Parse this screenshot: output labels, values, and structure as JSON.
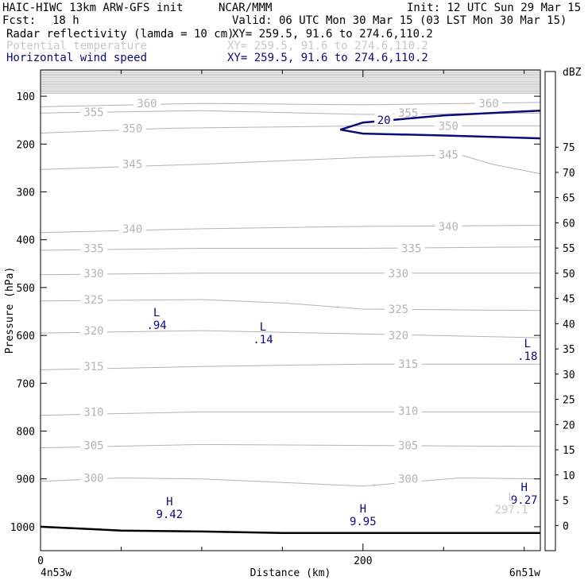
{
  "header": {
    "model": "HAIC-HIWC 13km ARW-GFS init",
    "org": "NCAR/MMM",
    "init": "Init: 12 UTC Sun 29 Mar 15",
    "fcst_label": "Fcst:",
    "fcst_value": "18 h",
    "valid": "Valid: 06 UTC Mon 30 Mar 15 (03 LST Mon 30 Mar 15)"
  },
  "fields": [
    {
      "name": "Radar reflectivity (lamda = 10 cm)",
      "xy": "XY= 259.5, 91.6 to 274.6,110.2",
      "color": "#000000"
    },
    {
      "name": "Potential temperature",
      "xy": "XY= 259.5, 91.6 to 274.6,110.2",
      "color": "#c8c8c8"
    },
    {
      "name": "Horizontal wind speed",
      "xy": "XY= 259.5, 91.6 to 274.6,110.2",
      "color": "#0a0a7a"
    }
  ],
  "chart_data": {
    "type": "cross-section contour",
    "xlabel": "Distance (km)",
    "ylabel": "Pressure (hPa)",
    "xlim": [
      0,
      310
    ],
    "ylim": [
      45,
      1050
    ],
    "x_ticks": [
      0,
      200
    ],
    "x_minor_ticks": [
      50,
      100,
      150,
      250,
      300
    ],
    "y_ticks": [
      100,
      200,
      300,
      400,
      500,
      600,
      700,
      800,
      900,
      1000
    ],
    "left_endpoint": "4n53w",
    "right_endpoint": "6n51w",
    "theta_contours": [
      {
        "value": 300,
        "points": [
          [
            0,
            905
          ],
          [
            50,
            898
          ],
          [
            100,
            900
          ],
          [
            200,
            915
          ],
          [
            260,
            898
          ],
          [
            310,
            900
          ]
        ],
        "labels": [
          {
            "x": 33,
            "p": 898
          },
          {
            "x": 228,
            "p": 900
          }
        ]
      },
      {
        "value": 305,
        "points": [
          [
            0,
            835
          ],
          [
            100,
            828
          ],
          [
            200,
            830
          ],
          [
            310,
            832
          ]
        ],
        "labels": [
          {
            "x": 33,
            "p": 830
          },
          {
            "x": 228,
            "p": 830
          }
        ]
      },
      {
        "value": 310,
        "points": [
          [
            0,
            767
          ],
          [
            100,
            760
          ],
          [
            200,
            760
          ],
          [
            310,
            760
          ]
        ],
        "labels": [
          {
            "x": 33,
            "p": 760
          },
          {
            "x": 228,
            "p": 758
          }
        ]
      },
      {
        "value": 315,
        "points": [
          [
            0,
            672
          ],
          [
            100,
            665
          ],
          [
            200,
            660
          ],
          [
            310,
            660
          ]
        ],
        "labels": [
          {
            "x": 33,
            "p": 665
          },
          {
            "x": 228,
            "p": 660
          }
        ]
      },
      {
        "value": 320,
        "points": [
          [
            0,
            595
          ],
          [
            100,
            590
          ],
          [
            200,
            597
          ],
          [
            310,
            605
          ]
        ],
        "labels": [
          {
            "x": 33,
            "p": 590
          },
          {
            "x": 222,
            "p": 600
          }
        ]
      },
      {
        "value": 325,
        "points": [
          [
            0,
            528
          ],
          [
            100,
            525
          ],
          [
            150,
            532
          ],
          [
            200,
            545
          ],
          [
            310,
            548
          ]
        ],
        "labels": [
          {
            "x": 33,
            "p": 525
          },
          {
            "x": 222,
            "p": 545
          }
        ]
      },
      {
        "value": 330,
        "points": [
          [
            0,
            473
          ],
          [
            100,
            470
          ],
          [
            200,
            470
          ],
          [
            310,
            470
          ]
        ],
        "labels": [
          {
            "x": 33,
            "p": 470
          },
          {
            "x": 222,
            "p": 470
          }
        ]
      },
      {
        "value": 335,
        "points": [
          [
            0,
            422
          ],
          [
            100,
            418
          ],
          [
            200,
            418
          ],
          [
            310,
            415
          ]
        ],
        "labels": [
          {
            "x": 33,
            "p": 418
          },
          {
            "x": 230,
            "p": 418
          }
        ]
      },
      {
        "value": 340,
        "points": [
          [
            0,
            385
          ],
          [
            100,
            377
          ],
          [
            200,
            372
          ],
          [
            310,
            370
          ]
        ],
        "labels": [
          {
            "x": 57,
            "p": 377
          },
          {
            "x": 253,
            "p": 372
          }
        ]
      },
      {
        "value": 345,
        "points": [
          [
            0,
            253
          ],
          [
            100,
            242
          ],
          [
            200,
            228
          ],
          [
            260,
            222
          ],
          [
            280,
            242
          ],
          [
            310,
            262
          ]
        ],
        "labels": [
          {
            "x": 57,
            "p": 242
          },
          {
            "x": 253,
            "p": 222
          }
        ]
      },
      {
        "value": 350,
        "points": [
          [
            0,
            177
          ],
          [
            80,
            167
          ],
          [
            200,
            162
          ],
          [
            310,
            162
          ]
        ],
        "labels": [
          {
            "x": 57,
            "p": 167
          },
          {
            "x": 253,
            "p": 162
          }
        ]
      },
      {
        "value": 355,
        "points": [
          [
            0,
            135
          ],
          [
            100,
            130
          ],
          [
            200,
            138
          ],
          [
            310,
            135
          ]
        ],
        "labels": [
          {
            "x": 33,
            "p": 133
          },
          {
            "x": 228,
            "p": 135
          }
        ]
      },
      {
        "value": 360,
        "points": [
          [
            0,
            122
          ],
          [
            100,
            115
          ],
          [
            200,
            118
          ],
          [
            310,
            113
          ]
        ],
        "labels": [
          {
            "x": 66,
            "p": 115
          },
          {
            "x": 278,
            "p": 115
          }
        ]
      }
    ],
    "wind_contours": [
      {
        "value": 20,
        "points": [
          [
            310,
            130
          ],
          [
            250,
            140
          ],
          [
            200,
            155
          ],
          [
            186,
            170
          ],
          [
            200,
            178
          ],
          [
            250,
            182
          ],
          [
            310,
            188
          ]
        ],
        "label": {
          "x": 213,
          "p": 150
        }
      }
    ],
    "surface": {
      "points": [
        [
          0,
          1000
        ],
        [
          50,
          1008
        ],
        [
          100,
          1010
        ],
        [
          150,
          1013
        ],
        [
          200,
          1013
        ],
        [
          250,
          1013
        ],
        [
          310,
          1013
        ]
      ]
    },
    "extrema": [
      {
        "type": "L",
        "value": ".94",
        "x": 72,
        "p": 560
      },
      {
        "type": "L",
        "value": ".14",
        "x": 138,
        "p": 590
      },
      {
        "type": "L",
        "value": ".18",
        "x": 302,
        "p": 625
      },
      {
        "type": "H",
        "value": "9.42",
        "x": 80,
        "p": 955
      },
      {
        "type": "H",
        "value": "9.95",
        "x": 200,
        "p": 970
      },
      {
        "type": "H",
        "value": "9.27",
        "x": 300,
        "p": 925
      },
      {
        "type": "L",
        "value": "297.1",
        "x": 292,
        "p": 945,
        "faint": true
      }
    ],
    "colorbar": {
      "title": "dBZ",
      "levels": [
        0,
        5,
        10,
        15,
        20,
        25,
        30,
        35,
        40,
        45,
        50,
        55,
        60,
        65,
        70,
        75
      ],
      "colors": [
        "#ffffff",
        "#7cfcf0",
        "#30aaf0",
        "#3232f0",
        "#2464c8",
        "#3c82b4",
        "#50e650",
        "#00b400",
        "#ffdc00",
        "#ffb43c",
        "#fa9650",
        "#ff5a00",
        "#ff1400",
        "#d20000",
        "#b40000",
        "#a03c50",
        "#963296",
        "#a050b4",
        "#b482c8"
      ]
    }
  }
}
